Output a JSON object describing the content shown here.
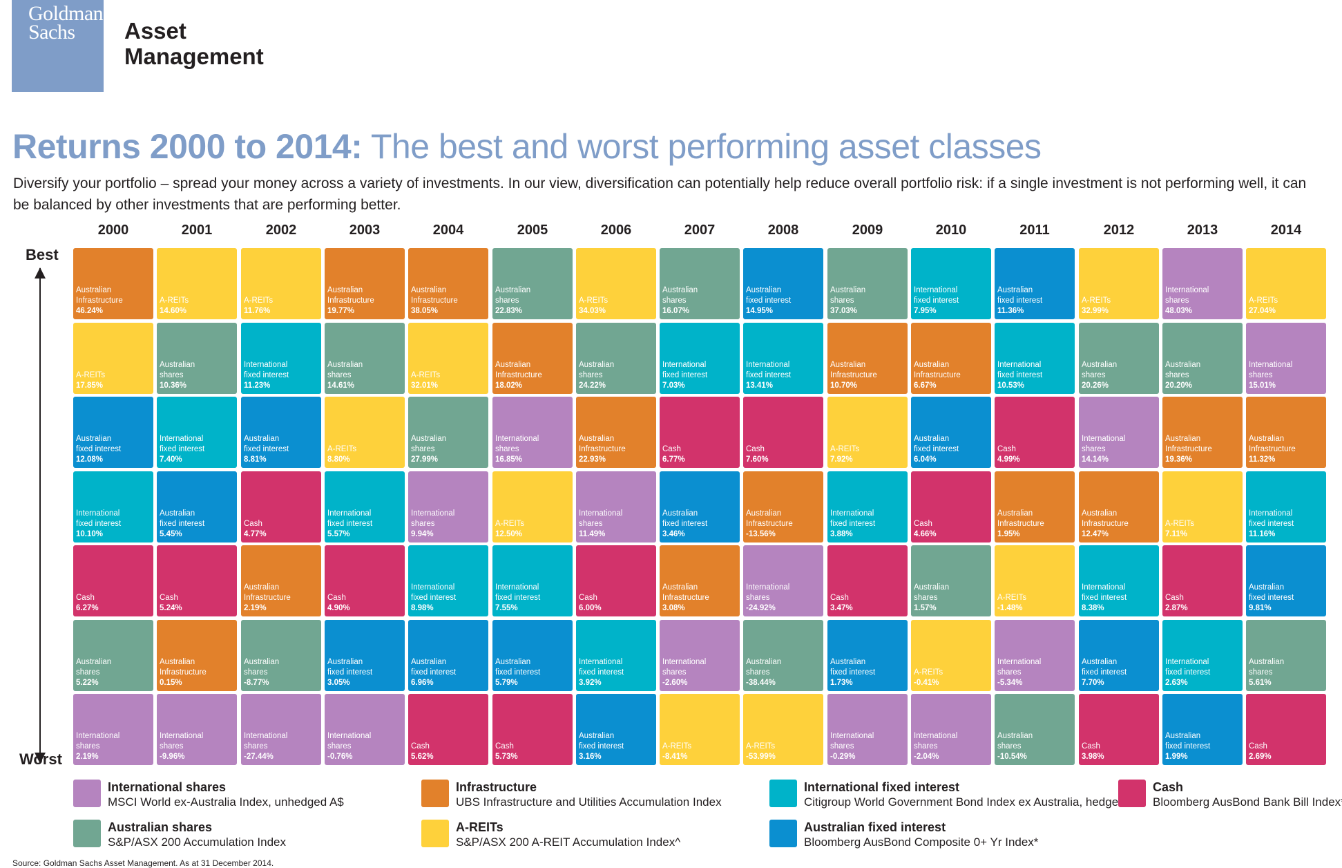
{
  "brand": {
    "logo_line1": "Goldman",
    "logo_line2": "Sachs",
    "name_line1": "Asset",
    "name_line2": "Management",
    "logo_color": "#7f9dc8"
  },
  "header": {
    "title_bold": "Returns 2000 to 2014:",
    "title_light": " The best and worst performing asset classes",
    "subtitle": "Diversify your portfolio – spread your money across a variety of investments. In our view, diversification can potentially help reduce overall portfolio risk: if a single investment is not performing well, it can be balanced by other investments that are performing better."
  },
  "axis": {
    "best": "Best",
    "worst": "Worst"
  },
  "source": "Source: Goldman Sachs Asset Management. As at 31 December 2014.",
  "colors": {
    "intl_shares": "#b584bf",
    "aus_shares": "#71a692",
    "infrastructure": "#e2812b",
    "areits": "#fed13b",
    "intl_fixed": "#00b3c9",
    "aus_fixed": "#0b8fd0",
    "cash": "#d2336b"
  },
  "legend": [
    {
      "key": "intl_shares",
      "name": "International shares",
      "index": "MSCI World ex-Australia Index, unhedged A$"
    },
    {
      "key": "aus_shares",
      "name": "Australian shares",
      "index": "S&P/ASX 200 Accumulation Index"
    },
    {
      "key": "infrastructure",
      "name": "Infrastructure",
      "index": "UBS Infrastructure and Utilities Accumulation Index"
    },
    {
      "key": "areits",
      "name": "A-REITs",
      "index": "S&P/ASX 200 A-REIT Accumulation Index^"
    },
    {
      "key": "intl_fixed",
      "name": "International fixed interest",
      "index": "Citigroup World Government Bond Index ex Australia, hedged"
    },
    {
      "key": "aus_fixed",
      "name": "Australian fixed interest",
      "index": "Bloomberg AusBond Composite 0+ Yr Index*"
    },
    {
      "key": "cash",
      "name": "Cash",
      "index": "Bloomberg AusBond Bank Bill Index*"
    }
  ],
  "chart_data": {
    "type": "table",
    "years": [
      "2000",
      "2001",
      "2002",
      "2003",
      "2004",
      "2005",
      "2006",
      "2007",
      "2008",
      "2009",
      "2010",
      "2011",
      "2012",
      "2013",
      "2014"
    ],
    "rank_order": "best to worst",
    "columns": [
      [
        {
          "key": "infrastructure",
          "label": [
            "Australian",
            "Infrastructure"
          ],
          "value": "46.24%"
        },
        {
          "key": "areits",
          "label": [
            "A-REITs"
          ],
          "value": "17.85%"
        },
        {
          "key": "aus_fixed",
          "label": [
            "Australian",
            "fixed interest"
          ],
          "value": "12.08%"
        },
        {
          "key": "intl_fixed",
          "label": [
            "International",
            "fixed interest"
          ],
          "value": "10.10%"
        },
        {
          "key": "cash",
          "label": [
            "Cash"
          ],
          "value": "6.27%"
        },
        {
          "key": "aus_shares",
          "label": [
            "Australian",
            "shares"
          ],
          "value": "5.22%"
        },
        {
          "key": "intl_shares",
          "label": [
            "International",
            "shares"
          ],
          "value": "2.19%"
        }
      ],
      [
        {
          "key": "areits",
          "label": [
            "A-REITs"
          ],
          "value": "14.60%"
        },
        {
          "key": "aus_shares",
          "label": [
            "Australian",
            "shares"
          ],
          "value": "10.36%"
        },
        {
          "key": "intl_fixed",
          "label": [
            "International",
            "fixed interest"
          ],
          "value": "7.40%"
        },
        {
          "key": "aus_fixed",
          "label": [
            "Australian",
            "fixed interest"
          ],
          "value": "5.45%"
        },
        {
          "key": "cash",
          "label": [
            "Cash"
          ],
          "value": "5.24%"
        },
        {
          "key": "infrastructure",
          "label": [
            "Australian",
            "Infrastructure"
          ],
          "value": "0.15%"
        },
        {
          "key": "intl_shares",
          "label": [
            "International",
            "shares"
          ],
          "value": "-9.96%"
        }
      ],
      [
        {
          "key": "areits",
          "label": [
            "A-REITs"
          ],
          "value": "11.76%"
        },
        {
          "key": "intl_fixed",
          "label": [
            "International",
            "fixed interest"
          ],
          "value": "11.23%"
        },
        {
          "key": "aus_fixed",
          "label": [
            "Australian",
            "fixed interest"
          ],
          "value": "8.81%"
        },
        {
          "key": "cash",
          "label": [
            "Cash"
          ],
          "value": "4.77%"
        },
        {
          "key": "infrastructure",
          "label": [
            "Australian",
            "Infrastructure"
          ],
          "value": "2.19%"
        },
        {
          "key": "aus_shares",
          "label": [
            "Australian",
            "shares"
          ],
          "value": "-8.77%"
        },
        {
          "key": "intl_shares",
          "label": [
            "International",
            "shares"
          ],
          "value": "-27.44%"
        }
      ],
      [
        {
          "key": "infrastructure",
          "label": [
            "Australian",
            "Infrastructure"
          ],
          "value": "19.77%"
        },
        {
          "key": "aus_shares",
          "label": [
            "Australian",
            "shares"
          ],
          "value": "14.61%"
        },
        {
          "key": "areits",
          "label": [
            "A-REITs"
          ],
          "value": "8.80%"
        },
        {
          "key": "intl_fixed",
          "label": [
            "International",
            "fixed interest"
          ],
          "value": "5.57%"
        },
        {
          "key": "cash",
          "label": [
            "Cash"
          ],
          "value": "4.90%"
        },
        {
          "key": "aus_fixed",
          "label": [
            "Australian",
            "fixed interest"
          ],
          "value": "3.05%"
        },
        {
          "key": "intl_shares",
          "label": [
            "International",
            "shares"
          ],
          "value": "-0.76%"
        }
      ],
      [
        {
          "key": "infrastructure",
          "label": [
            "Australian",
            "Infrastructure"
          ],
          "value": "38.05%"
        },
        {
          "key": "areits",
          "label": [
            "A-REITs"
          ],
          "value": "32.01%"
        },
        {
          "key": "aus_shares",
          "label": [
            "Australian",
            "shares"
          ],
          "value": "27.99%"
        },
        {
          "key": "intl_shares",
          "label": [
            "International",
            "shares"
          ],
          "value": "9.94%"
        },
        {
          "key": "intl_fixed",
          "label": [
            "International",
            "fixed interest"
          ],
          "value": "8.98%"
        },
        {
          "key": "aus_fixed",
          "label": [
            "Australian",
            "fixed interest"
          ],
          "value": "6.96%"
        },
        {
          "key": "cash",
          "label": [
            "Cash"
          ],
          "value": "5.62%"
        }
      ],
      [
        {
          "key": "aus_shares",
          "label": [
            "Australian",
            "shares"
          ],
          "value": "22.83%"
        },
        {
          "key": "infrastructure",
          "label": [
            "Australian",
            "Infrastructure"
          ],
          "value": "18.02%"
        },
        {
          "key": "intl_shares",
          "label": [
            "International",
            "shares"
          ],
          "value": "16.85%"
        },
        {
          "key": "areits",
          "label": [
            "A-REITs"
          ],
          "value": "12.50%"
        },
        {
          "key": "intl_fixed",
          "label": [
            "International",
            "fixed interest"
          ],
          "value": "7.55%"
        },
        {
          "key": "aus_fixed",
          "label": [
            "Australian",
            "fixed interest"
          ],
          "value": "5.79%"
        },
        {
          "key": "cash",
          "label": [
            "Cash"
          ],
          "value": "5.73%"
        }
      ],
      [
        {
          "key": "areits",
          "label": [
            "A-REITs"
          ],
          "value": "34.03%"
        },
        {
          "key": "aus_shares",
          "label": [
            "Australian",
            "shares"
          ],
          "value": "24.22%"
        },
        {
          "key": "infrastructure",
          "label": [
            "Australian",
            "Infrastructure"
          ],
          "value": "22.93%"
        },
        {
          "key": "intl_shares",
          "label": [
            "International",
            "shares"
          ],
          "value": "11.49%"
        },
        {
          "key": "cash",
          "label": [
            "Cash"
          ],
          "value": "6.00%"
        },
        {
          "key": "intl_fixed",
          "label": [
            "International",
            "fixed interest"
          ],
          "value": "3.92%"
        },
        {
          "key": "aus_fixed",
          "label": [
            "Australian",
            "fixed interest"
          ],
          "value": "3.16%"
        }
      ],
      [
        {
          "key": "aus_shares",
          "label": [
            "Australian",
            "shares"
          ],
          "value": "16.07%"
        },
        {
          "key": "intl_fixed",
          "label": [
            "International",
            "fixed interest"
          ],
          "value": "7.03%"
        },
        {
          "key": "cash",
          "label": [
            "Cash"
          ],
          "value": "6.77%"
        },
        {
          "key": "aus_fixed",
          "label": [
            "Australian",
            "fixed interest"
          ],
          "value": "3.46%"
        },
        {
          "key": "infrastructure",
          "label": [
            "Australian",
            "Infrastructure"
          ],
          "value": "3.08%"
        },
        {
          "key": "intl_shares",
          "label": [
            "International",
            "shares"
          ],
          "value": "-2.60%"
        },
        {
          "key": "areits",
          "label": [
            "A-REITs"
          ],
          "value": "-8.41%"
        }
      ],
      [
        {
          "key": "aus_fixed",
          "label": [
            "Australian",
            "fixed interest"
          ],
          "value": "14.95%"
        },
        {
          "key": "intl_fixed",
          "label": [
            "International",
            "fixed interest"
          ],
          "value": "13.41%"
        },
        {
          "key": "cash",
          "label": [
            "Cash"
          ],
          "value": "7.60%"
        },
        {
          "key": "infrastructure",
          "label": [
            "Australian",
            "Infrastructure"
          ],
          "value": "-13.56%"
        },
        {
          "key": "intl_shares",
          "label": [
            "International",
            "shares"
          ],
          "value": "-24.92%"
        },
        {
          "key": "aus_shares",
          "label": [
            "Australian",
            "shares"
          ],
          "value": "-38.44%"
        },
        {
          "key": "areits",
          "label": [
            "A-REITs"
          ],
          "value": "-53.99%"
        }
      ],
      [
        {
          "key": "aus_shares",
          "label": [
            "Australian",
            "shares"
          ],
          "value": "37.03%"
        },
        {
          "key": "infrastructure",
          "label": [
            "Australian",
            "Infrastructure"
          ],
          "value": "10.70%"
        },
        {
          "key": "areits",
          "label": [
            "A-REITs"
          ],
          "value": "7.92%"
        },
        {
          "key": "intl_fixed",
          "label": [
            "International",
            "fixed interest"
          ],
          "value": "3.88%"
        },
        {
          "key": "cash",
          "label": [
            "Cash"
          ],
          "value": "3.47%"
        },
        {
          "key": "aus_fixed",
          "label": [
            "Australian",
            "fixed interest"
          ],
          "value": "1.73%"
        },
        {
          "key": "intl_shares",
          "label": [
            "International",
            "shares"
          ],
          "value": "-0.29%"
        }
      ],
      [
        {
          "key": "intl_fixed",
          "label": [
            "International",
            "fixed interest"
          ],
          "value": "7.95%"
        },
        {
          "key": "infrastructure",
          "label": [
            "Australian",
            "Infrastructure"
          ],
          "value": "6.67%"
        },
        {
          "key": "aus_fixed",
          "label": [
            "Australian",
            "fixed interest"
          ],
          "value": "6.04%"
        },
        {
          "key": "cash",
          "label": [
            "Cash"
          ],
          "value": "4.66%"
        },
        {
          "key": "aus_shares",
          "label": [
            "Australian",
            "shares"
          ],
          "value": "1.57%"
        },
        {
          "key": "areits",
          "label": [
            "A-REITs"
          ],
          "value": "-0.41%"
        },
        {
          "key": "intl_shares",
          "label": [
            "International",
            "shares"
          ],
          "value": "-2.04%"
        }
      ],
      [
        {
          "key": "aus_fixed",
          "label": [
            "Australian",
            "fixed interest"
          ],
          "value": "11.36%"
        },
        {
          "key": "intl_fixed",
          "label": [
            "International",
            "fixed interest"
          ],
          "value": "10.53%"
        },
        {
          "key": "cash",
          "label": [
            "Cash"
          ],
          "value": "4.99%"
        },
        {
          "key": "infrastructure",
          "label": [
            "Australian",
            "Infrastructure"
          ],
          "value": "1.95%"
        },
        {
          "key": "areits",
          "label": [
            "A-REITs"
          ],
          "value": "-1.48%"
        },
        {
          "key": "intl_shares",
          "label": [
            "International",
            "shares"
          ],
          "value": "-5.34%"
        },
        {
          "key": "aus_shares",
          "label": [
            "Australian",
            "shares"
          ],
          "value": "-10.54%"
        }
      ],
      [
        {
          "key": "areits",
          "label": [
            "A-REITs"
          ],
          "value": "32.99%"
        },
        {
          "key": "aus_shares",
          "label": [
            "Australian",
            "shares"
          ],
          "value": "20.26%"
        },
        {
          "key": "intl_shares",
          "label": [
            "International",
            "shares"
          ],
          "value": "14.14%"
        },
        {
          "key": "infrastructure",
          "label": [
            "Australian",
            "Infrastructure"
          ],
          "value": "12.47%"
        },
        {
          "key": "intl_fixed",
          "label": [
            "International",
            "fixed interest"
          ],
          "value": "8.38%"
        },
        {
          "key": "aus_fixed",
          "label": [
            "Australian",
            "fixed interest"
          ],
          "value": "7.70%"
        },
        {
          "key": "cash",
          "label": [
            "Cash"
          ],
          "value": "3.98%"
        }
      ],
      [
        {
          "key": "intl_shares",
          "label": [
            "International",
            "shares"
          ],
          "value": "48.03%"
        },
        {
          "key": "aus_shares",
          "label": [
            "Australian",
            "shares"
          ],
          "value": "20.20%"
        },
        {
          "key": "infrastructure",
          "label": [
            "Australian",
            "Infrastructure"
          ],
          "value": "19.36%"
        },
        {
          "key": "areits",
          "label": [
            "A-REITs"
          ],
          "value": "7.11%"
        },
        {
          "key": "cash",
          "label": [
            "Cash"
          ],
          "value": "2.87%"
        },
        {
          "key": "intl_fixed",
          "label": [
            "International",
            "fixed interest"
          ],
          "value": "2.63%"
        },
        {
          "key": "aus_fixed",
          "label": [
            "Australian",
            "fixed interest"
          ],
          "value": "1.99%"
        }
      ],
      [
        {
          "key": "areits",
          "label": [
            "A-REITs"
          ],
          "value": "27.04%"
        },
        {
          "key": "intl_shares",
          "label": [
            "International",
            "shares"
          ],
          "value": "15.01%"
        },
        {
          "key": "infrastructure",
          "label": [
            "Australian",
            "Infrastructure"
          ],
          "value": "11.32%"
        },
        {
          "key": "intl_fixed",
          "label": [
            "International",
            "fixed interest"
          ],
          "value": "11.16%"
        },
        {
          "key": "aus_fixed",
          "label": [
            "Australian",
            "fixed interest"
          ],
          "value": "9.81%"
        },
        {
          "key": "aus_shares",
          "label": [
            "Australian",
            "shares"
          ],
          "value": "5.61%"
        },
        {
          "key": "cash",
          "label": [
            "Cash"
          ],
          "value": "2.69%"
        }
      ]
    ]
  }
}
